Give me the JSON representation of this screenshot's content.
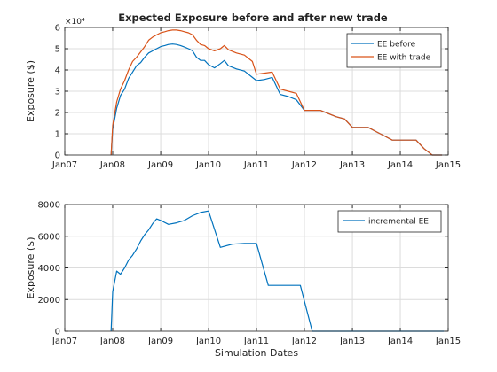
{
  "figure": {
    "xlabel": "Simulation Dates"
  },
  "chart_data": [
    {
      "type": "line",
      "title": "Expected Exposure before and after new trade",
      "ylabel": "Exposure ($)",
      "exponent_label": "×10⁴",
      "xlim": [
        "2007-01-01",
        "2015-01-01"
      ],
      "ylim": [
        0,
        6
      ],
      "xticks": [
        "2007-01-01",
        "2008-01-01",
        "2009-01-01",
        "2010-01-01",
        "2011-01-01",
        "2012-01-01",
        "2013-01-01",
        "2014-01-01",
        "2015-01-01"
      ],
      "xtick_labels": [
        "Jan07",
        "Jan08",
        "Jan09",
        "Jan10",
        "Jan11",
        "Jan12",
        "Jan13",
        "Jan14",
        "Jan15"
      ],
      "yticks": [
        0,
        1,
        2,
        3,
        4,
        5,
        6
      ],
      "ytick_labels": [
        "0",
        "1",
        "2",
        "3",
        "4",
        "5",
        "6"
      ],
      "grid": true,
      "legend_position": "top-right",
      "series": [
        {
          "name": "EE before",
          "color": "#0072BD",
          "points": [
            [
              "2007-12-20",
              0.0
            ],
            [
              "2008-01-01",
              1.2
            ],
            [
              "2008-02-01",
              2.2
            ],
            [
              "2008-03-01",
              2.8
            ],
            [
              "2008-04-01",
              3.1
            ],
            [
              "2008-05-01",
              3.6
            ],
            [
              "2008-06-01",
              3.9
            ],
            [
              "2008-07-01",
              4.2
            ],
            [
              "2008-08-01",
              4.35
            ],
            [
              "2008-09-01",
              4.6
            ],
            [
              "2008-10-01",
              4.8
            ],
            [
              "2008-11-01",
              4.9
            ],
            [
              "2008-12-01",
              5.0
            ],
            [
              "2009-01-01",
              5.1
            ],
            [
              "2009-02-01",
              5.15
            ],
            [
              "2009-03-01",
              5.2
            ],
            [
              "2009-04-01",
              5.22
            ],
            [
              "2009-05-01",
              5.2
            ],
            [
              "2009-06-01",
              5.15
            ],
            [
              "2009-07-01",
              5.08
            ],
            [
              "2009-08-01",
              5.0
            ],
            [
              "2009-09-01",
              4.9
            ],
            [
              "2009-10-01",
              4.6
            ],
            [
              "2009-11-01",
              4.45
            ],
            [
              "2009-12-01",
              4.45
            ],
            [
              "2010-01-01",
              4.25
            ],
            [
              "2010-02-15",
              4.1
            ],
            [
              "2010-04-01",
              4.3
            ],
            [
              "2010-05-01",
              4.45
            ],
            [
              "2010-06-01",
              4.2
            ],
            [
              "2010-08-01",
              4.05
            ],
            [
              "2010-10-01",
              3.95
            ],
            [
              "2010-12-01",
              3.65
            ],
            [
              "2011-01-01",
              3.5
            ],
            [
              "2011-03-01",
              3.55
            ],
            [
              "2011-05-01",
              3.65
            ],
            [
              "2011-07-01",
              2.85
            ],
            [
              "2011-09-01",
              2.75
            ],
            [
              "2011-11-01",
              2.6
            ],
            [
              "2012-01-01",
              2.1
            ],
            [
              "2012-03-01",
              2.1
            ],
            [
              "2012-05-01",
              2.1
            ],
            [
              "2012-07-01",
              1.95
            ],
            [
              "2012-09-01",
              1.8
            ],
            [
              "2012-11-01",
              1.7
            ],
            [
              "2013-01-01",
              1.3
            ],
            [
              "2013-03-01",
              1.3
            ],
            [
              "2013-05-01",
              1.3
            ],
            [
              "2013-07-01",
              1.1
            ],
            [
              "2013-09-01",
              0.9
            ],
            [
              "2013-11-01",
              0.7
            ],
            [
              "2014-01-01",
              0.7
            ],
            [
              "2014-03-01",
              0.7
            ],
            [
              "2014-05-01",
              0.7
            ],
            [
              "2014-07-01",
              0.3
            ],
            [
              "2014-09-01",
              0.0
            ],
            [
              "2014-11-15",
              0.0
            ]
          ]
        },
        {
          "name": "EE with trade",
          "color": "#D95319",
          "points": [
            [
              "2007-12-20",
              0.0
            ],
            [
              "2008-01-01",
              1.4
            ],
            [
              "2008-02-01",
              2.5
            ],
            [
              "2008-03-01",
              3.1
            ],
            [
              "2008-04-01",
              3.5
            ],
            [
              "2008-05-01",
              4.0
            ],
            [
              "2008-06-01",
              4.4
            ],
            [
              "2008-07-01",
              4.6
            ],
            [
              "2008-08-01",
              4.85
            ],
            [
              "2008-09-01",
              5.1
            ],
            [
              "2008-10-01",
              5.4
            ],
            [
              "2008-11-01",
              5.55
            ],
            [
              "2008-12-01",
              5.65
            ],
            [
              "2009-01-01",
              5.75
            ],
            [
              "2009-02-01",
              5.8
            ],
            [
              "2009-03-01",
              5.85
            ],
            [
              "2009-04-01",
              5.88
            ],
            [
              "2009-05-01",
              5.88
            ],
            [
              "2009-06-01",
              5.85
            ],
            [
              "2009-07-01",
              5.8
            ],
            [
              "2009-08-01",
              5.75
            ],
            [
              "2009-09-01",
              5.65
            ],
            [
              "2009-10-01",
              5.4
            ],
            [
              "2009-11-01",
              5.2
            ],
            [
              "2009-12-01",
              5.15
            ],
            [
              "2010-01-01",
              5.0
            ],
            [
              "2010-02-15",
              4.9
            ],
            [
              "2010-04-01",
              5.0
            ],
            [
              "2010-05-01",
              5.15
            ],
            [
              "2010-06-01",
              4.95
            ],
            [
              "2010-08-01",
              4.8
            ],
            [
              "2010-10-01",
              4.7
            ],
            [
              "2010-12-01",
              4.4
            ],
            [
              "2011-01-01",
              3.8
            ],
            [
              "2011-03-01",
              3.85
            ],
            [
              "2011-05-01",
              3.9
            ],
            [
              "2011-07-01",
              3.1
            ],
            [
              "2011-09-01",
              3.0
            ],
            [
              "2011-11-01",
              2.9
            ],
            [
              "2012-01-01",
              2.1
            ],
            [
              "2012-03-01",
              2.1
            ],
            [
              "2012-05-01",
              2.1
            ],
            [
              "2012-07-01",
              1.95
            ],
            [
              "2012-09-01",
              1.8
            ],
            [
              "2012-11-01",
              1.7
            ],
            [
              "2013-01-01",
              1.3
            ],
            [
              "2013-03-01",
              1.3
            ],
            [
              "2013-05-01",
              1.3
            ],
            [
              "2013-07-01",
              1.1
            ],
            [
              "2013-09-01",
              0.9
            ],
            [
              "2013-11-01",
              0.7
            ],
            [
              "2014-01-01",
              0.7
            ],
            [
              "2014-03-01",
              0.7
            ],
            [
              "2014-05-01",
              0.7
            ],
            [
              "2014-07-01",
              0.3
            ],
            [
              "2014-09-01",
              0.0
            ],
            [
              "2014-11-15",
              0.0
            ]
          ]
        }
      ]
    },
    {
      "type": "line",
      "title": "",
      "ylabel": "Exposure ($)",
      "xlim": [
        "2007-01-01",
        "2015-01-01"
      ],
      "ylim": [
        0,
        8000
      ],
      "xticks": [
        "2007-01-01",
        "2008-01-01",
        "2009-01-01",
        "2010-01-01",
        "2011-01-01",
        "2012-01-01",
        "2013-01-01",
        "2014-01-01",
        "2015-01-01"
      ],
      "xtick_labels": [
        "Jan07",
        "Jan08",
        "Jan09",
        "Jan10",
        "Jan11",
        "Jan12",
        "Jan13",
        "Jan14",
        "Jan15"
      ],
      "yticks": [
        0,
        2000,
        4000,
        6000,
        8000
      ],
      "ytick_labels": [
        "0",
        "2000",
        "4000",
        "6000",
        "8000"
      ],
      "grid": true,
      "legend_position": "top-right",
      "series": [
        {
          "name": "incremental EE",
          "color": "#0072BD",
          "points": [
            [
              "2007-12-20",
              0
            ],
            [
              "2008-01-01",
              2500
            ],
            [
              "2008-02-01",
              3800
            ],
            [
              "2008-03-01",
              3600
            ],
            [
              "2008-04-01",
              4000
            ],
            [
              "2008-05-01",
              4500
            ],
            [
              "2008-06-01",
              4800
            ],
            [
              "2008-07-01",
              5200
            ],
            [
              "2008-08-01",
              5700
            ],
            [
              "2008-09-01",
              6100
            ],
            [
              "2008-10-01",
              6400
            ],
            [
              "2008-11-01",
              6800
            ],
            [
              "2008-12-01",
              7100
            ],
            [
              "2009-01-01",
              7000
            ],
            [
              "2009-03-01",
              6750
            ],
            [
              "2009-05-01",
              6850
            ],
            [
              "2009-07-01",
              7000
            ],
            [
              "2009-09-01",
              7300
            ],
            [
              "2009-11-01",
              7500
            ],
            [
              "2010-01-01",
              7600
            ],
            [
              "2010-04-01",
              5300
            ],
            [
              "2010-07-01",
              5500
            ],
            [
              "2010-10-01",
              5550
            ],
            [
              "2011-01-01",
              5550
            ],
            [
              "2011-04-01",
              2900
            ],
            [
              "2011-08-01",
              2900
            ],
            [
              "2011-12-01",
              2900
            ],
            [
              "2012-03-01",
              0
            ],
            [
              "2013-01-01",
              0
            ],
            [
              "2014-01-01",
              0
            ],
            [
              "2014-12-01",
              0
            ]
          ]
        }
      ]
    }
  ]
}
